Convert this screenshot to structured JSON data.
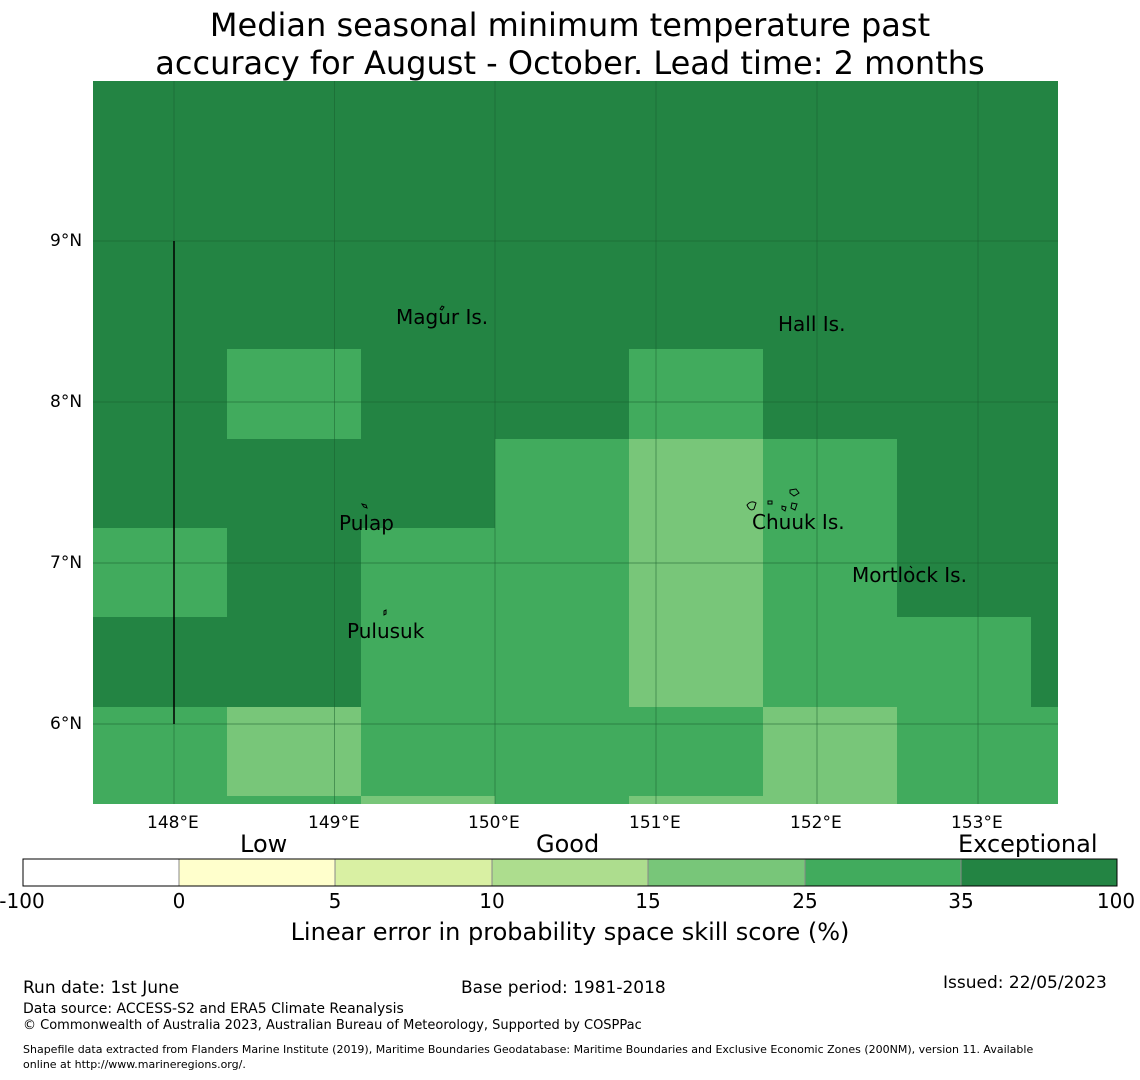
{
  "title": {
    "line1": "Median seasonal minimum temperature past",
    "line2": "accuracy for August - October. Lead time: 2 months"
  },
  "map": {
    "lat_labels": [
      "9°N",
      "8°N",
      "7°N",
      "6°N"
    ],
    "lon_labels": [
      "148°E",
      "149°E",
      "150°E",
      "151°E",
      "152°E",
      "153°E"
    ],
    "places": [
      "Magur Is.",
      "Hall Is.",
      "Pulap",
      "Chuuk Is.",
      "Mortlock Is.",
      "Pulusuk"
    ]
  },
  "colorbar": {
    "categories": [
      "Low",
      "Good",
      "Exceptional"
    ],
    "ticks": [
      "-100",
      "0",
      "5",
      "10",
      "15",
      "25",
      "35",
      "100"
    ],
    "colors": [
      "#ffffff",
      "#ffffcc",
      "#d9f0a3",
      "#addd8e",
      "#78c679",
      "#41ab5d",
      "#238443"
    ],
    "title": "Linear error in probability space skill score (%)"
  },
  "footer": {
    "run_date": "Run date: 1st June",
    "base_period": "Base period: 1981-2018",
    "issued": "Issued: 22/05/2023",
    "data_source": "Data source: ACCESS-S2 and ERA5 Climate Reanalysis",
    "copyright": "© Commonwealth of Australia 2023, Australian Bureau of Meteorology, Supported by COSPPac",
    "shapefile_line1": "Shapefile data extracted from Flanders Marine Institute (2019), Maritime Boundaries Geodatabase: Maritime Boundaries and Exclusive Economic Zones (200NM), version 11. Available",
    "shapefile_line2": "online at http://www.marineregions.org/."
  }
}
